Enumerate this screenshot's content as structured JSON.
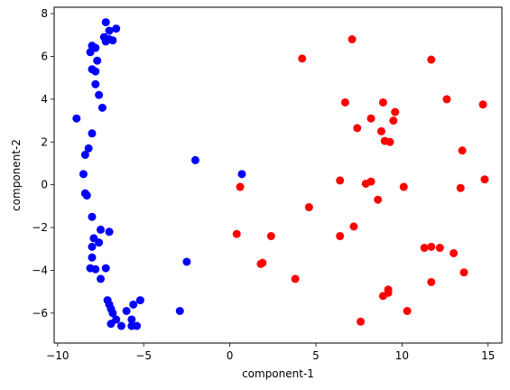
{
  "chart_data": {
    "type": "scatter",
    "xlabel": "component-1",
    "ylabel": "component-2",
    "xlim": [
      -10.2,
      15.8
    ],
    "ylim": [
      -7.4,
      8.3
    ],
    "xticks": [
      -10,
      -5,
      0,
      5,
      10,
      15
    ],
    "yticks": [
      -6,
      -4,
      -2,
      0,
      2,
      4,
      6,
      8
    ],
    "grid": false,
    "series": [
      {
        "color": "#0000ff",
        "points": [
          [
            -7.2,
            7.6
          ],
          [
            -6.6,
            7.3
          ],
          [
            -7.0,
            7.2
          ],
          [
            -7.3,
            6.9
          ],
          [
            -7.0,
            6.8
          ],
          [
            -6.8,
            6.75
          ],
          [
            -7.2,
            6.7
          ],
          [
            -8.0,
            6.5
          ],
          [
            -7.8,
            6.4
          ],
          [
            -8.1,
            6.2
          ],
          [
            -7.7,
            5.8
          ],
          [
            -8.0,
            5.4
          ],
          [
            -7.8,
            5.3
          ],
          [
            -7.8,
            4.7
          ],
          [
            -7.6,
            4.2
          ],
          [
            -7.4,
            3.6
          ],
          [
            -8.9,
            3.1
          ],
          [
            -8.0,
            2.4
          ],
          [
            -8.2,
            1.7
          ],
          [
            -8.4,
            1.4
          ],
          [
            -8.5,
            0.5
          ],
          [
            -8.4,
            -0.4
          ],
          [
            -8.3,
            -0.5
          ],
          [
            -8.0,
            -1.5
          ],
          [
            -7.5,
            -2.1
          ],
          [
            -7.0,
            -2.2
          ],
          [
            -7.9,
            -2.5
          ],
          [
            -7.6,
            -2.7
          ],
          [
            -8.0,
            -2.9
          ],
          [
            -8.0,
            -3.4
          ],
          [
            -8.1,
            -3.9
          ],
          [
            -7.8,
            -3.95
          ],
          [
            -7.2,
            -3.9
          ],
          [
            -7.5,
            -4.4
          ],
          [
            -7.1,
            -5.4
          ],
          [
            -7.0,
            -5.6
          ],
          [
            -6.9,
            -5.8
          ],
          [
            -6.8,
            -6.0
          ],
          [
            -6.6,
            -6.3
          ],
          [
            -6.9,
            -6.5
          ],
          [
            -6.3,
            -6.6
          ],
          [
            -6.0,
            -5.9
          ],
          [
            -5.7,
            -6.3
          ],
          [
            -5.6,
            -5.6
          ],
          [
            -5.2,
            -5.4
          ],
          [
            -5.7,
            -6.6
          ],
          [
            -5.4,
            -6.6
          ],
          [
            -2.0,
            1.15
          ],
          [
            0.7,
            0.5
          ],
          [
            -2.5,
            -3.6
          ],
          [
            -2.9,
            -5.9
          ]
        ]
      },
      {
        "color": "#ff0000",
        "points": [
          [
            7.1,
            6.8
          ],
          [
            4.2,
            5.9
          ],
          [
            11.7,
            5.85
          ],
          [
            6.7,
            3.85
          ],
          [
            8.9,
            3.85
          ],
          [
            12.6,
            4.0
          ],
          [
            14.7,
            3.75
          ],
          [
            9.6,
            3.4
          ],
          [
            8.2,
            3.1
          ],
          [
            9.5,
            3.0
          ],
          [
            7.4,
            2.65
          ],
          [
            8.8,
            2.5
          ],
          [
            9.0,
            2.05
          ],
          [
            9.3,
            2.0
          ],
          [
            13.5,
            1.6
          ],
          [
            6.4,
            0.2
          ],
          [
            8.2,
            0.15
          ],
          [
            7.9,
            0.05
          ],
          [
            10.1,
            -0.1
          ],
          [
            13.4,
            -0.15
          ],
          [
            14.8,
            0.25
          ],
          [
            0.6,
            -0.1
          ],
          [
            8.6,
            -0.7
          ],
          [
            4.6,
            -1.05
          ],
          [
            7.2,
            -1.95
          ],
          [
            0.4,
            -2.3
          ],
          [
            2.4,
            -2.4
          ],
          [
            6.4,
            -2.4
          ],
          [
            11.3,
            -2.95
          ],
          [
            11.7,
            -2.9
          ],
          [
            12.2,
            -2.95
          ],
          [
            13.0,
            -3.2
          ],
          [
            1.9,
            -3.65
          ],
          [
            1.8,
            -3.7
          ],
          [
            13.6,
            -4.1
          ],
          [
            3.8,
            -4.4
          ],
          [
            11.7,
            -4.55
          ],
          [
            9.2,
            -4.9
          ],
          [
            9.2,
            -5.05
          ],
          [
            8.9,
            -5.2
          ],
          [
            10.3,
            -5.9
          ],
          [
            7.6,
            -6.4
          ]
        ]
      }
    ]
  }
}
